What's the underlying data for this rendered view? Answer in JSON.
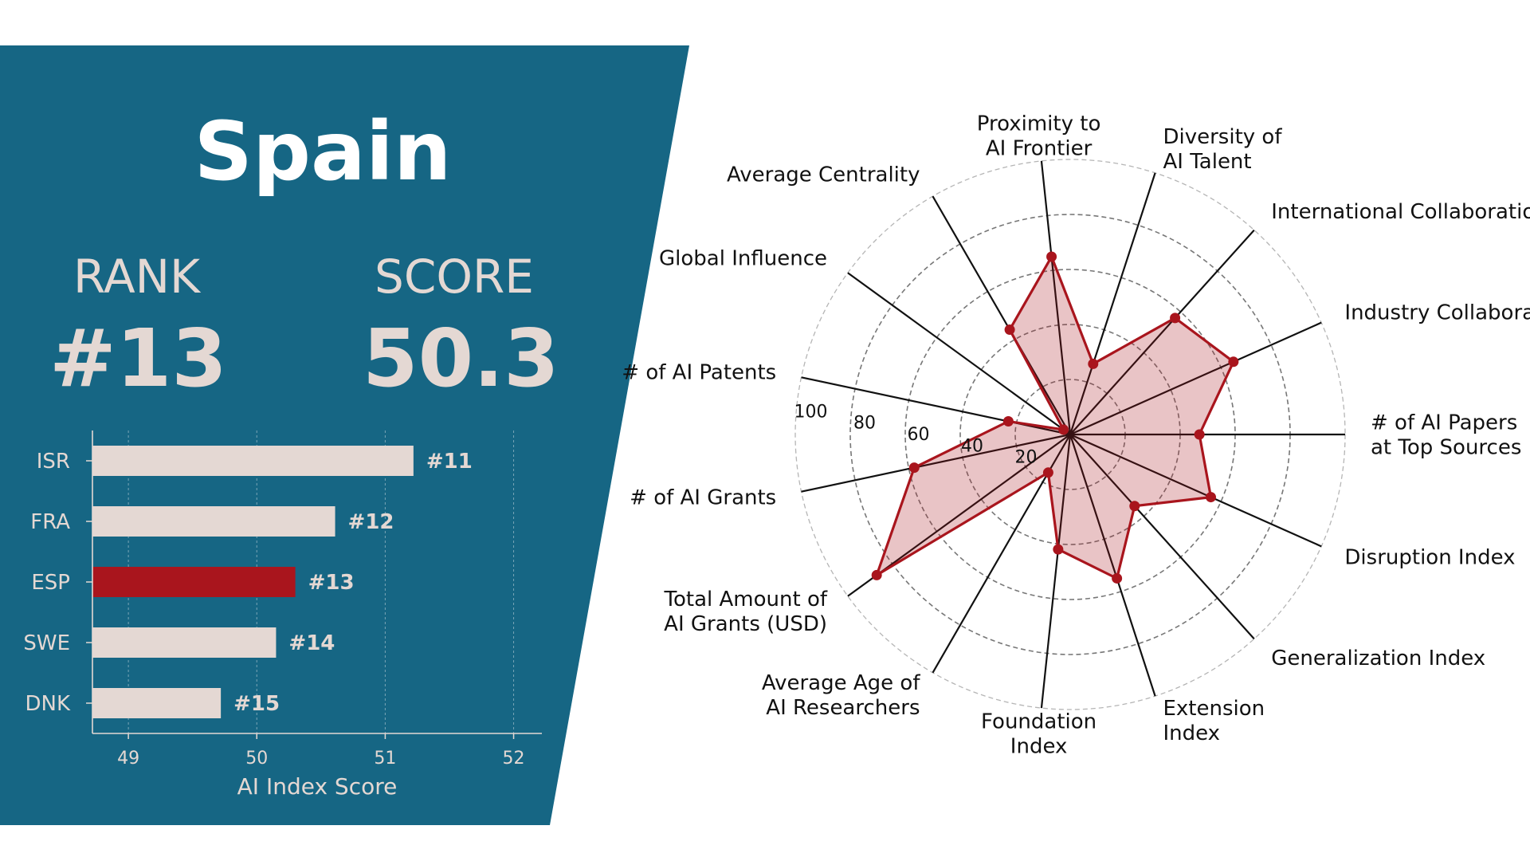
{
  "country": "Spain",
  "rank_label": "RANK",
  "rank_value": "#13",
  "score_label": "SCORE",
  "score_value": "50.3",
  "colors": {
    "panel": "#166684",
    "accent": "#a9151d",
    "neutral": "#e4d8d3"
  },
  "chart_data": [
    {
      "type": "bar",
      "orientation": "horizontal",
      "categories": [
        "ISR",
        "FRA",
        "ESP",
        "SWE",
        "DNK"
      ],
      "values": [
        51.22,
        50.61,
        50.3,
        50.15,
        49.72
      ],
      "rank_labels": [
        "#11",
        "#12",
        "#13",
        "#14",
        "#15"
      ],
      "highlight": "ESP",
      "xlabel": "AI Index Score",
      "xlim": [
        48.72,
        52.22
      ],
      "xticks": [
        "49",
        "50",
        "51",
        "52"
      ],
      "grid": true
    },
    {
      "type": "radar",
      "axes": [
        "# of AI Papers\nat Top Sources",
        "Industry Collaboration",
        "International Collaboration",
        "Diversity of\nAI Talent",
        "Proximity to\nAI Frontier",
        "Average Centrality",
        "Global Influence",
        "# of AI Patents",
        "# of AI Grants",
        "Total Amount of\nAI Grants (USD)",
        "Average Age of\nAI Researchers",
        "Foundation\nIndex",
        "Extension\nIndex",
        "Generalization Index",
        "Disruption Index"
      ],
      "values": [
        47,
        65,
        57,
        27,
        65,
        44,
        3,
        23,
        58,
        87,
        16,
        42,
        55,
        35,
        56
      ],
      "rlim": [
        0,
        100
      ],
      "rticks": [
        "20",
        "40",
        "60",
        "80",
        "100"
      ]
    }
  ]
}
